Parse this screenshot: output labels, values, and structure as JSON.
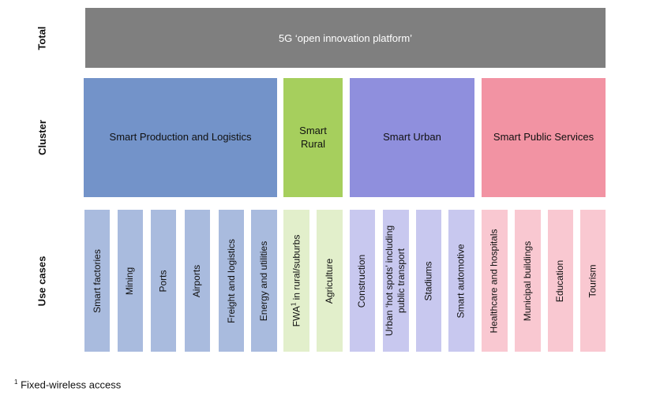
{
  "row_labels": {
    "total": "Total",
    "cluster": "Cluster",
    "use_cases": "Use cases"
  },
  "total": {
    "label": "5G ‘open innovation platform’"
  },
  "clusters": [
    {
      "label": "Smart Production and Logistics",
      "color": "#7393c9"
    },
    {
      "label": "Smart Rural",
      "color": "#a6cf5d"
    },
    {
      "label": "Smart Urban",
      "color": "#8f8fdd"
    },
    {
      "label": "Smart Public Services",
      "color": "#f293a3"
    }
  ],
  "use_cases": [
    {
      "label": "Smart factories",
      "cluster": 0
    },
    {
      "label": "Mining",
      "cluster": 0
    },
    {
      "label": "Ports",
      "cluster": 0
    },
    {
      "label": "Airports",
      "cluster": 0
    },
    {
      "label": "Freight and logistics",
      "cluster": 0
    },
    {
      "label": "Energy and utilities",
      "cluster": 0
    },
    {
      "label_pre": "FWA",
      "label_sup": "1",
      "label_post": " in rural/suburbs",
      "cluster": 1
    },
    {
      "label": "Agriculture",
      "cluster": 1
    },
    {
      "label": "Construction",
      "cluster": 2
    },
    {
      "label_line1": "Urban ‘hot spots’ including",
      "label_line2": "public transport",
      "cluster": 2
    },
    {
      "label": "Stadiums",
      "cluster": 2
    },
    {
      "label": "Smart automotive",
      "cluster": 2
    },
    {
      "label": "Healthcare and hospitals",
      "cluster": 3
    },
    {
      "label": "Municipal buildings",
      "cluster": 3
    },
    {
      "label": "Education",
      "cluster": 3
    },
    {
      "label": "Tourism",
      "cluster": 3
    }
  ],
  "use_case_colors": [
    "#a9bbde",
    "#e2efcb",
    "#c8c8ef",
    "#f9c8d1"
  ],
  "footnote": {
    "marker": "1",
    "text": " Fixed-wireless access"
  }
}
